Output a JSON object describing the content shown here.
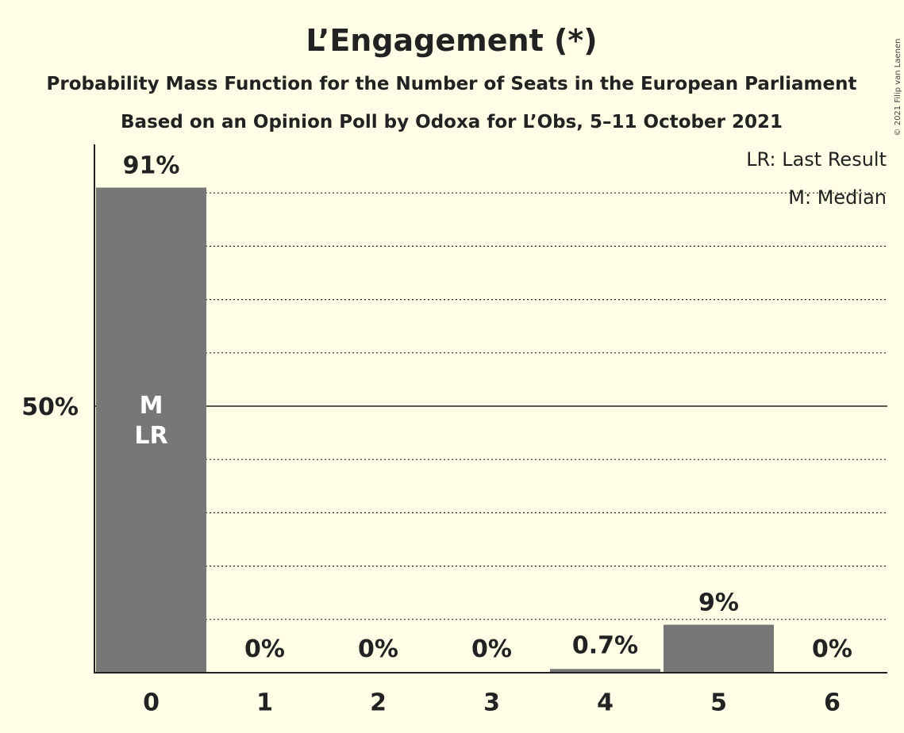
{
  "title": "L’Engagement (*)",
  "subtitle": "Probability Mass Function for the Number of Seats in the European Parliament",
  "source_line": "Based on an Opinion Poll by Odoxa for L’Obs, 5–11 October 2021",
  "copyright": "© 2021 Filip van Laenen",
  "legend": {
    "last_result": "LR: Last Result",
    "median": "M: Median"
  },
  "colors": {
    "background": "#FFFEE6",
    "bar": "#777777",
    "text": "#222222"
  },
  "chart_data": {
    "type": "bar",
    "categories": [
      "0",
      "1",
      "2",
      "3",
      "4",
      "5",
      "6"
    ],
    "values": [
      91,
      0,
      0,
      0,
      0.7,
      9,
      0
    ],
    "value_labels": [
      "91%",
      "0%",
      "0%",
      "0%",
      "0.7%",
      "9%",
      "0%"
    ],
    "ylim": [
      0,
      100
    ],
    "ytick_values": [
      50
    ],
    "ytick_labels": [
      "50%"
    ],
    "gridlines": [
      10,
      20,
      30,
      40,
      60,
      70,
      80,
      90
    ],
    "bar_annotations": [
      {
        "category": "0",
        "lines": [
          "M",
          "LR"
        ]
      }
    ],
    "xlabel": "",
    "ylabel": ""
  }
}
